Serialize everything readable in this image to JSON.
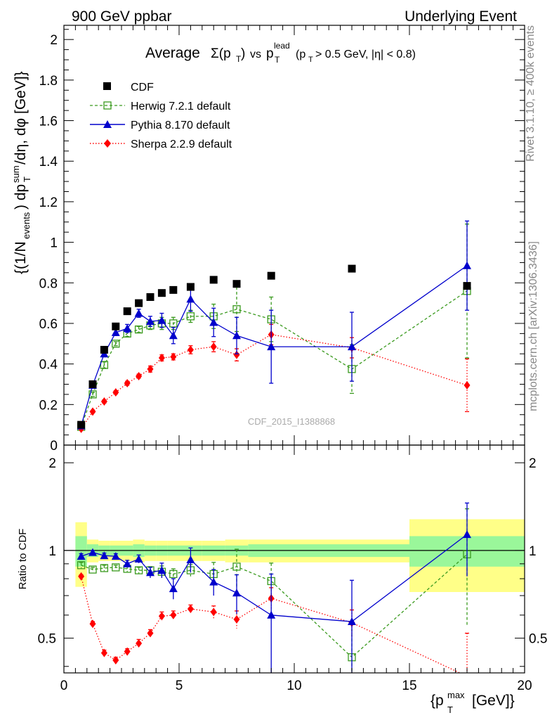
{
  "header": {
    "left": "900 GeV ppbar",
    "right": "Underlying Event",
    "title_main": "Average",
    "title_sigma": "Σ(p",
    "title_sigma_sub": "T",
    "title_sigma_close": ")",
    "title_vs": "vs",
    "title_p": "p",
    "title_p_sub": "T",
    "title_p_sup": "lead",
    "title_cut": "(p",
    "title_cut_sub": "T",
    "title_cut_rest": "> 0.5 GeV, |η| < 0.8)"
  },
  "side": {
    "rivet": "Rivet 3.1.10, ≥ 400k events",
    "mcplots": "mcplots.cern.ch [arXiv:1306.3436]"
  },
  "watermark": "CDF_2015_I1388868",
  "ratio_ylabel": "Ratio to CDF",
  "main_ylabel": "{(1/N",
  "colors": {
    "cdf": "#000000",
    "herwig": "#3a9a1e",
    "pythia": "#0000cc",
    "sherpa": "#ff0000",
    "band_inner": "#9af79a",
    "band_outer": "#ffff88"
  },
  "chart_data": {
    "type": "scatter",
    "xlabel": "{p_T^max [GeV]}",
    "ylabel": "{(1/N_events) dp_T^sum/dη, dφ [GeV]}",
    "xlim": [
      0,
      20
    ],
    "ylim": [
      0,
      2.07
    ],
    "ratio_ylim": [
      0.38,
      2.3
    ],
    "x_ticks": [
      "0",
      "5",
      "10",
      "15",
      "20"
    ],
    "y_ticks": [
      "0",
      "0.2",
      "0.4",
      "0.6",
      "0.8",
      "1",
      "1.2",
      "1.4",
      "1.6",
      "1.8",
      "2"
    ],
    "ratio_ticks": [
      "0.5",
      "1",
      "2"
    ],
    "legend_position": "top-left",
    "bins": [
      [
        0.5,
        1
      ],
      [
        1,
        1.5
      ],
      [
        1.5,
        2
      ],
      [
        2,
        2.5
      ],
      [
        2.5,
        3
      ],
      [
        3,
        3.5
      ],
      [
        3.5,
        4
      ],
      [
        4,
        4.5
      ],
      [
        4.5,
        5
      ],
      [
        5,
        6
      ],
      [
        6,
        7
      ],
      [
        7,
        8
      ],
      [
        8,
        10
      ],
      [
        10,
        15
      ],
      [
        15,
        20
      ]
    ],
    "series": [
      {
        "name": "CDF",
        "x": [
          0.75,
          1.25,
          1.75,
          2.25,
          2.75,
          3.25,
          3.75,
          4.25,
          4.75,
          5.5,
          6.5,
          7.5,
          9.0,
          12.5,
          17.5
        ],
        "y": [
          0.1,
          0.3,
          0.47,
          0.585,
          0.66,
          0.7,
          0.73,
          0.75,
          0.765,
          0.78,
          0.815,
          0.795,
          0.835,
          0.87,
          0.785
        ],
        "ratio_band_inner": [
          0.12,
          0.05,
          0.04,
          0.04,
          0.04,
          0.05,
          0.04,
          0.04,
          0.04,
          0.04,
          0.04,
          0.04,
          0.05,
          0.05,
          0.12
        ],
        "ratio_band_outer": [
          0.25,
          0.09,
          0.08,
          0.08,
          0.08,
          0.09,
          0.08,
          0.08,
          0.08,
          0.08,
          0.08,
          0.09,
          0.09,
          0.09,
          0.28
        ]
      },
      {
        "name": "Herwig 7.2.1 default",
        "x": [
          0.75,
          1.25,
          1.75,
          2.25,
          2.75,
          3.25,
          3.75,
          4.25,
          4.75,
          5.5,
          6.5,
          7.5,
          9.0,
          12.5,
          17.5
        ],
        "y": [
          0.09,
          0.25,
          0.395,
          0.5,
          0.55,
          0.57,
          0.59,
          0.6,
          0.6,
          0.635,
          0.635,
          0.67,
          0.62,
          0.375,
          0.76
        ],
        "err": [
          0.01,
          0.01,
          0.015,
          0.01,
          0.015,
          0.015,
          0.02,
          0.03,
          0.03,
          0.03,
          0.06,
          0.11,
          0.11,
          0.12,
          0.33
        ],
        "ratio": [
          0.89,
          0.86,
          0.87,
          0.875,
          0.865,
          0.855,
          0.855,
          0.845,
          0.83,
          0.855,
          0.83,
          0.88,
          0.785,
          0.43,
          0.97
        ],
        "ratio_err": [
          0.02,
          0.015,
          0.02,
          0.015,
          0.02,
          0.02,
          0.025,
          0.04,
          0.035,
          0.04,
          0.08,
          0.13,
          0.12,
          0.13,
          0.42
        ]
      },
      {
        "name": "Pythia 8.170 default",
        "x": [
          0.75,
          1.25,
          1.75,
          2.25,
          2.75,
          3.25,
          3.75,
          4.25,
          4.75,
          5.5,
          6.5,
          7.5,
          9.0,
          12.5,
          17.5
        ],
        "y": [
          0.095,
          0.295,
          0.45,
          0.555,
          0.575,
          0.65,
          0.61,
          0.615,
          0.54,
          0.72,
          0.605,
          0.54,
          0.485,
          0.485,
          0.885
        ],
        "err": [
          0.01,
          0.01,
          0.015,
          0.015,
          0.02,
          0.02,
          0.025,
          0.035,
          0.04,
          0.06,
          0.07,
          0.09,
          0.18,
          0.17,
          0.22
        ],
        "ratio": [
          0.955,
          0.985,
          0.96,
          0.955,
          0.9,
          0.935,
          0.84,
          0.855,
          0.74,
          0.93,
          0.78,
          0.715,
          0.6,
          0.57,
          1.135
        ],
        "ratio_err": [
          0.02,
          0.015,
          0.02,
          0.02,
          0.025,
          0.03,
          0.035,
          0.05,
          0.06,
          0.09,
          0.08,
          0.11,
          0.23,
          0.22,
          0.32
        ]
      },
      {
        "name": "Sherpa 2.2.9 default",
        "x": [
          0.75,
          1.25,
          1.75,
          2.25,
          2.75,
          3.25,
          3.75,
          4.25,
          4.75,
          5.5,
          6.5,
          7.5,
          9.0,
          12.5,
          17.5
        ],
        "y": [
          0.08,
          0.165,
          0.215,
          0.26,
          0.305,
          0.34,
          0.375,
          0.43,
          0.435,
          0.47,
          0.485,
          0.445,
          0.545,
          0.48,
          0.295
        ],
        "err": [
          0.005,
          0.005,
          0.008,
          0.008,
          0.01,
          0.01,
          0.015,
          0.015,
          0.015,
          0.02,
          0.025,
          0.03,
          0.05,
          0.05,
          0.13
        ],
        "ratio": [
          0.815,
          0.56,
          0.445,
          0.42,
          0.45,
          0.48,
          0.52,
          0.595,
          0.6,
          0.63,
          0.615,
          0.58,
          0.685,
          0.565,
          0.37
        ],
        "ratio_err": [
          0.01,
          0.01,
          0.01,
          0.01,
          0.01,
          0.015,
          0.015,
          0.02,
          0.02,
          0.02,
          0.03,
          0.04,
          0.06,
          0.06,
          0.15
        ]
      }
    ]
  }
}
